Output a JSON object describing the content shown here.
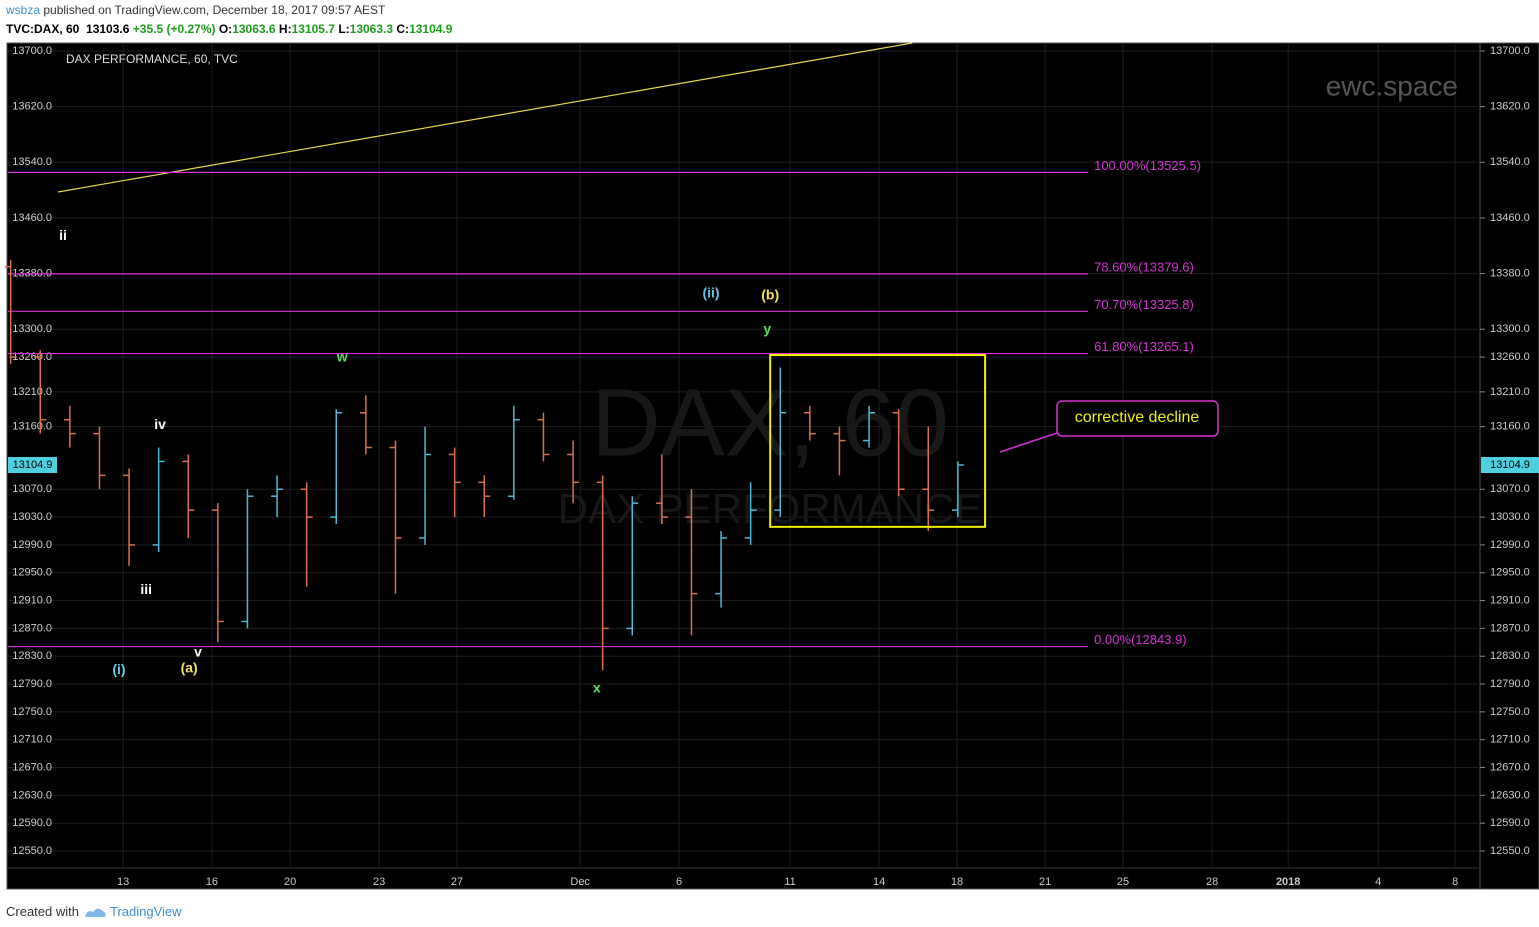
{
  "header": {
    "author": "wsbza",
    "published": "published on TradingView.com, December 18, 2017 09:57 AEST",
    "symbol": "TVC:DAX, 60",
    "last": "13103.6",
    "change": "+35.5 (+0.27%)",
    "o_label": "O:",
    "o": "13063.6",
    "h_label": "H:",
    "h": "13105.7",
    "l_label": "L:",
    "l": "13063.3",
    "c_label": "C:",
    "c": "13104.9"
  },
  "footer": {
    "created": "Created with",
    "brand": "TradingView"
  },
  "chart_data": {
    "type": "ohlc",
    "title": "DAX PERFORMANCE, 60, TVC",
    "watermark": "ewc.space",
    "symbol_watermark": "DAX, 60",
    "name_watermark": "DAX PERFORMANCE",
    "xlim": [
      -3.89,
      45.84
    ],
    "xticks": [
      {
        "value": 0,
        "label": "13"
      },
      {
        "value": 3,
        "label": "16"
      },
      {
        "value": 5.64,
        "label": "20"
      },
      {
        "value": 8.65,
        "label": "23"
      },
      {
        "value": 11.28,
        "label": "27"
      },
      {
        "value": 15.44,
        "label": "Dec"
      },
      {
        "value": 18.78,
        "label": "6"
      },
      {
        "value": 22.53,
        "label": "11"
      },
      {
        "value": 25.54,
        "label": "14"
      },
      {
        "value": 28.17,
        "label": "18"
      },
      {
        "value": 31.15,
        "label": "21"
      },
      {
        "value": 33.78,
        "label": "25"
      },
      {
        "value": 36.79,
        "label": "28"
      },
      {
        "value": 39.36,
        "label": "2018"
      },
      {
        "value": 42.4,
        "label": "4"
      },
      {
        "value": 45,
        "label": "8"
      }
    ],
    "ylim": [
      12495.4,
      13711.5
    ],
    "yticks": [
      {
        "value": 13700,
        "label": "13700.0"
      },
      {
        "value": 13620,
        "label": "13620.0"
      },
      {
        "value": 13540,
        "label": "13540.0"
      },
      {
        "value": 13460,
        "label": "13460.0"
      },
      {
        "value": 13380,
        "label": "13380.0"
      },
      {
        "value": 13300,
        "label": "13300.0"
      },
      {
        "value": 13260,
        "label": "13260.0"
      },
      {
        "value": 13210,
        "label": "13210.0"
      },
      {
        "value": 13160,
        "label": "13160.0"
      },
      {
        "value": 13070,
        "label": "13070.0"
      },
      {
        "value": 13030,
        "label": "13030.0"
      },
      {
        "value": 12990,
        "label": "12990.0"
      },
      {
        "value": 12950,
        "label": "12950.0"
      },
      {
        "value": 12910,
        "label": "12910.0"
      },
      {
        "value": 12870,
        "label": "12870.0"
      },
      {
        "value": 12830,
        "label": "12830.0"
      },
      {
        "value": 12790,
        "label": "12790.0"
      },
      {
        "value": 12750,
        "label": "12750.0"
      },
      {
        "value": 12710,
        "label": "12710.0"
      },
      {
        "value": 12670,
        "label": "12670.0"
      },
      {
        "value": 12630,
        "label": "12630.0"
      },
      {
        "value": 12590,
        "label": "12590.0"
      },
      {
        "value": 12550,
        "label": "12550.0"
      }
    ],
    "grid": true,
    "up_color": "#4fb8d4",
    "down_color": "#d9704e",
    "x": [
      -3.8,
      -2.8,
      -1.8,
      -0.8,
      0.2,
      1.2,
      2.2,
      3.2,
      4.2,
      5.2,
      6.2,
      7.2,
      8.2,
      9.2,
      10.2,
      11.2,
      12.2,
      13.2,
      14.2,
      15.2,
      16.2,
      17.2,
      18.2,
      19.2,
      20.2,
      21.2,
      22.2,
      23.2,
      24.2,
      25.2,
      26.2,
      27.2,
      28.2
    ],
    "open": [
      13390,
      13260,
      13170,
      13150,
      13090,
      12990,
      13110,
      13040,
      12880,
      13060,
      13070,
      13030,
      13180,
      13130,
      13000,
      13120,
      13080,
      13060,
      13170,
      13120,
      13080,
      12870,
      13050,
      13030,
      12920,
      13000,
      13040,
      13180,
      13150,
      13140,
      13180,
      13070,
      13040
    ],
    "high": [
      13400,
      13270,
      13190,
      13160,
      13100,
      13130,
      13120,
      13050,
      13070,
      13090,
      13080,
      13185,
      13205,
      13140,
      13160,
      13130,
      13090,
      13190,
      13180,
      13140,
      13090,
      13060,
      13120,
      13070,
      13010,
      13080,
      13245,
      13190,
      13160,
      13190,
      13185,
      13160,
      13110
    ],
    "low": [
      13250,
      13150,
      13130,
      13070,
      12960,
      12980,
      13000,
      12850,
      12870,
      13030,
      12930,
      13020,
      13120,
      12920,
      12990,
      13030,
      13030,
      13055,
      13110,
      13050,
      12810,
      12860,
      13020,
      12860,
      12900,
      12990,
      13030,
      13140,
      13090,
      13130,
      13060,
      13010,
      13030
    ],
    "close": [
      13260,
      13170,
      13150,
      13090,
      12990,
      13110,
      13040,
      12880,
      13060,
      13070,
      13030,
      13180,
      13130,
      13000,
      13120,
      13080,
      13060,
      13170,
      13120,
      13080,
      12870,
      13050,
      13030,
      12920,
      13000,
      13040,
      13180,
      13150,
      13140,
      13180,
      13070,
      13040,
      13104.9
    ],
    "last_price": {
      "value": 13104.9,
      "label": "13104.9"
    },
    "fib_color": "#d633d6",
    "fib_xlim": [
      -3.89,
      32.6
    ],
    "fib_levels": [
      {
        "value": 13525.5,
        "label": "100.00%(13525.5)"
      },
      {
        "value": 13379.6,
        "label": "78.60%(13379.6)"
      },
      {
        "value": 13325.8,
        "label": "70.70%(13325.8)"
      },
      {
        "value": 13265.1,
        "label": "61.80%(13265.1)"
      },
      {
        "value": 12843.9,
        "label": "0.00%(12843.9)"
      }
    ],
    "trendline": {
      "color": "#e6d84a",
      "x": [
        -2.2,
        26.66
      ],
      "values": [
        13497.3,
        13711.5
      ]
    },
    "box": {
      "color": "#f0f000",
      "xlim": [
        21.86,
        29.12
      ],
      "ylim": [
        13016,
        13263
      ]
    },
    "annotation": "corrective decline",
    "wave_labels": [
      {
        "text": "ii",
        "x": -2.03,
        "value": 13434,
        "color": "#ffffff"
      },
      {
        "text": "iii",
        "x": 0.78,
        "value": 12925,
        "color": "#ffffff"
      },
      {
        "text": "iv",
        "x": 1.25,
        "value": 13162,
        "color": "#ffffff"
      },
      {
        "text": "v",
        "x": 2.53,
        "value": 12835,
        "color": "#ffffff"
      },
      {
        "text": "(i)",
        "x": -0.14,
        "value": 12810,
        "color": "#5bc8e8"
      },
      {
        "text": "(a)",
        "x": 2.23,
        "value": 12812,
        "color": "#f2e35a"
      },
      {
        "text": "w",
        "x": 7.4,
        "value": 13259,
        "color": "#5ddc5d"
      },
      {
        "text": "x",
        "x": 16.0,
        "value": 12783,
        "color": "#5ddc5d"
      },
      {
        "text": "y",
        "x": 21.76,
        "value": 13299,
        "color": "#5ddc5d"
      },
      {
        "text": "(ii)",
        "x": 19.86,
        "value": 13351,
        "color": "#5bc8e8"
      },
      {
        "text": "(b)",
        "x": 21.86,
        "value": 13348,
        "color": "#f2e35a"
      }
    ]
  }
}
